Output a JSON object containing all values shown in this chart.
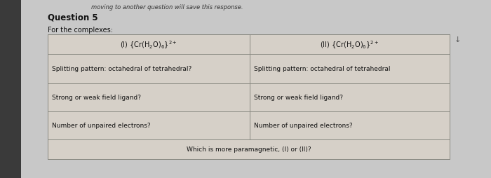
{
  "title": "Question 5",
  "subtitle": "For the complexes:",
  "header_note": "moving to another question will save this response.",
  "col1_header": "(I) {Cr(H$_2$O)$_6$}$^{2+}$",
  "col2_header": "(II) {Cr(H$_2$O)$_6$}$^{2+}$",
  "row1_col1": "Splitting pattern: octahedral of tetrahedral?",
  "row1_col2": "Splitting pattern: octahedral of tetrahedral",
  "row2_col1": "Strong or weak field ligand?",
  "row2_col2": "Strong or weak field ligand?",
  "row3_col1": "Number of unpaired electrons?",
  "row3_col2": "Number of unpaired electrons?",
  "bottom_row": "Which is more paramagnetic, (I) or (II)?",
  "bg_color": "#c8c8c8",
  "table_bg": "#d6d0c8",
  "border_color": "#888880",
  "text_color": "#111111",
  "note_color": "#333333",
  "arrow_color": "#555555",
  "left_margin_color": "#444444"
}
